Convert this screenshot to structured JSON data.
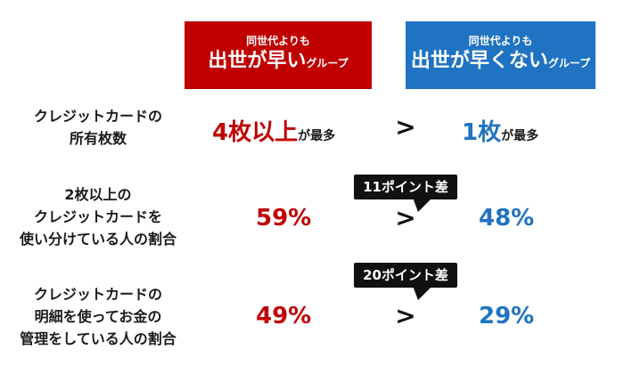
{
  "headers": {
    "fast": {
      "small": "同世代よりも",
      "big": "出世が早い",
      "suffix": "グループ"
    },
    "slow": {
      "small": "同世代よりも",
      "big": "出世が早くない",
      "suffix": "グループ"
    }
  },
  "rows": [
    {
      "label_lines": [
        "クレジットカードの",
        "所有枚数"
      ],
      "fast_value": "4枚以上",
      "fast_suffix": "が最多",
      "slow_value": "1枚",
      "slow_suffix": "が最多",
      "comparator": ">"
    },
    {
      "label_lines": [
        "2枚以上の",
        "クレジットカードを",
        "使い分けている人の割合"
      ],
      "fast_value": "59%",
      "slow_value": "48%",
      "comparator": ">",
      "diff_label": "11ポイント差"
    },
    {
      "label_lines": [
        "クレジットカードの",
        "明細を使ってお金の",
        "管理をしている人の割合"
      ],
      "fast_value": "49%",
      "slow_value": "29%",
      "comparator": ">",
      "diff_label": "20ポイント差"
    }
  ],
  "colors": {
    "fast": "#c00000",
    "slow": "#1f73c2",
    "callout": "#111111"
  }
}
